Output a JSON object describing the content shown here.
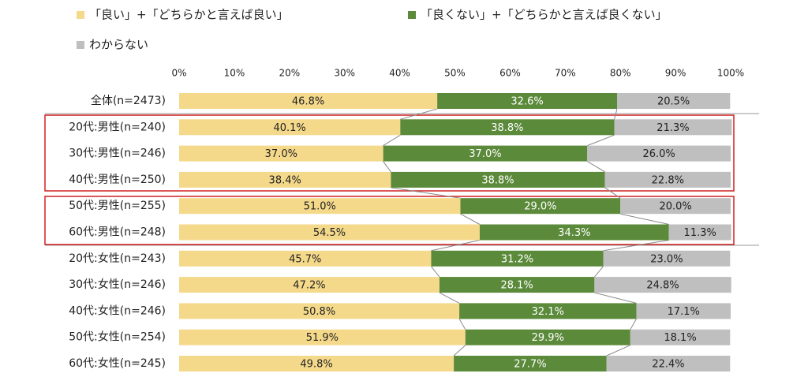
{
  "chart_data": {
    "type": "stacked-bar-horizontal",
    "categories": [
      "全体(n=2473)",
      "20代:男性(n=240)",
      "30代:男性(n=246)",
      "40代:男性(n=250)",
      "50代:男性(n=255)",
      "60代:男性(n=248)",
      "20代:女性(n=243)",
      "30代:女性(n=246)",
      "40代:女性(n=246)",
      "50代:女性(n=254)",
      "60代:女性(n=245)"
    ],
    "series": [
      {
        "name": "「良い」+「どちらかと言えば良い」",
        "color": "#f5d98b",
        "values": [
          46.8,
          40.1,
          37.0,
          38.4,
          51.0,
          54.5,
          45.7,
          47.2,
          50.8,
          51.9,
          49.8
        ],
        "value_labels": [
          "46.8%",
          "40.1%",
          "37.0%",
          "38.4%",
          "51.0%",
          "54.5%",
          "45.7%",
          "47.2%",
          "50.8%",
          "51.9%",
          "49.8%"
        ]
      },
      {
        "name": "「良くない」+「どちらかと言えば良くない」",
        "color": "#5b8a3a",
        "values": [
          32.6,
          38.8,
          37.0,
          38.8,
          29.0,
          34.3,
          31.2,
          28.1,
          32.1,
          29.9,
          27.7
        ],
        "value_labels": [
          "32.6%",
          "38.8%",
          "37.0%",
          "38.8%",
          "29.0%",
          "34.3%",
          "31.2%",
          "28.1%",
          "32.1%",
          "29.9%",
          "27.7%"
        ]
      },
      {
        "name": "わからない",
        "color": "#bfbfbf",
        "values": [
          20.5,
          21.3,
          26.0,
          22.8,
          20.0,
          11.3,
          23.0,
          24.8,
          17.1,
          18.1,
          22.4
        ],
        "value_labels": [
          "20.5%",
          "21.3%",
          "26.0%",
          "22.8%",
          "20.0%",
          "11.3%",
          "23.0%",
          "24.8%",
          "17.1%",
          "18.1%",
          "22.4%"
        ]
      }
    ],
    "xlim": [
      0,
      100
    ],
    "xticks": [
      {
        "value": 0,
        "label": "0%"
      },
      {
        "value": 10,
        "label": "10%"
      },
      {
        "value": 20,
        "label": "20%"
      },
      {
        "value": 30,
        "label": "30%"
      },
      {
        "value": 40,
        "label": "40%"
      },
      {
        "value": 50,
        "label": "50%"
      },
      {
        "value": 60,
        "label": "60%"
      },
      {
        "value": 70,
        "label": "70%"
      },
      {
        "value": 80,
        "label": "80%"
      },
      {
        "value": 90,
        "label": "90%"
      },
      {
        "value": 100,
        "label": "100%"
      }
    ],
    "legend": "top"
  }
}
